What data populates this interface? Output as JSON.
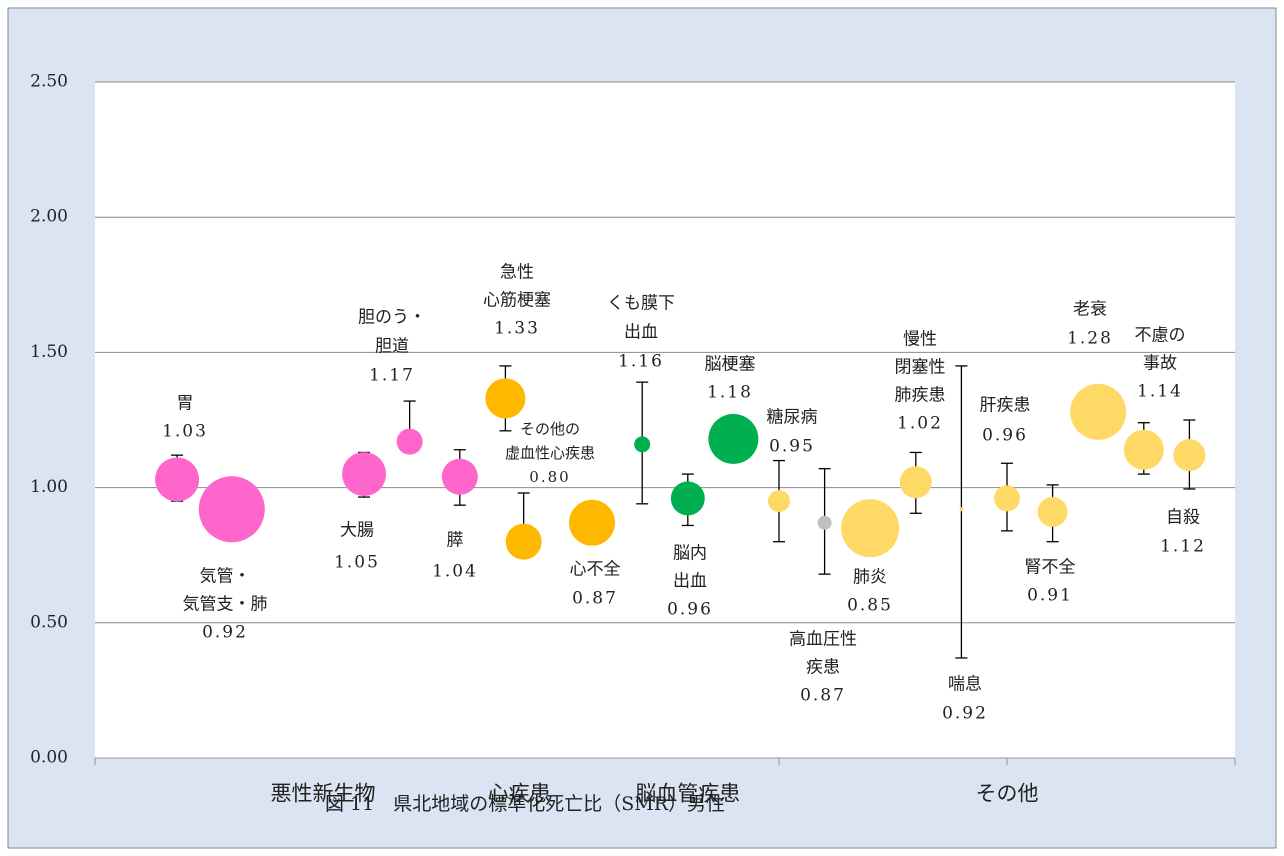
{
  "chart_data": {
    "type": "bubble",
    "title": "図 11　県北地域の標準化死亡比（SMR）男性",
    "xlim": [
      0,
      25
    ],
    "xticks": [
      0,
      15,
      20,
      25
    ],
    "ylim": [
      0,
      2.5
    ],
    "yticks": [
      {
        "value": 0,
        "label": "0.00"
      },
      {
        "value": 0.5,
        "label": "0.50"
      },
      {
        "value": 1,
        "label": "1.00"
      },
      {
        "value": 1.5,
        "label": "1.50"
      },
      {
        "value": 2,
        "label": "2.00"
      },
      {
        "value": 2.5,
        "label": "2.50"
      }
    ],
    "grid": true,
    "groups": [
      {
        "label": "悪性新生物",
        "x": 5
      },
      {
        "label": "心疾患",
        "x": 9.3
      },
      {
        "label": "脳血管疾患",
        "x": 13
      },
      {
        "label": "その他",
        "x": 20
      }
    ],
    "labels": [
      [
        "胃"
      ],
      [
        "気管・",
        "気管支・肺"
      ],
      [
        "大腸"
      ],
      [
        "胆のう・",
        "胆道"
      ],
      [
        "膵"
      ],
      [
        "急性",
        "心筋梗塞"
      ],
      [
        "その他の",
        "虚血性心疾患"
      ],
      [
        "心不全"
      ],
      [
        "くも膜下",
        "出血"
      ],
      [
        "脳内",
        "出血"
      ],
      [
        "脳梗塞"
      ],
      [
        "糖尿病"
      ],
      [
        "高血圧性",
        "疾患"
      ],
      [
        "肺炎"
      ],
      [
        "慢性",
        "閉塞性",
        "肺疾患"
      ],
      [
        "喘息"
      ],
      [
        "肝疾患"
      ],
      [
        "腎不全"
      ],
      [
        "老衰"
      ],
      [
        "不慮の",
        "事故"
      ],
      [
        "自殺"
      ]
    ],
    "x": [
      1.8,
      3,
      5.9,
      6.9,
      8,
      9,
      9.4,
      10.9,
      12,
      13,
      14,
      15,
      16,
      17,
      18,
      19,
      20,
      21,
      22,
      23,
      24
    ],
    "values": [
      1.03,
      0.92,
      1.05,
      1.17,
      1.04,
      1.33,
      0.8,
      0.87,
      1.16,
      0.96,
      1.18,
      0.95,
      0.87,
      0.85,
      1.02,
      0.92,
      0.96,
      0.91,
      1.28,
      1.14,
      1.12
    ],
    "value_labels": [
      "1.03",
      "0.92",
      "1.05",
      "1.17",
      "1.04",
      "1.33",
      "0.80",
      "0.87",
      "1.16",
      "0.96",
      "1.18",
      "0.95",
      "0.87",
      "0.85",
      "1.02",
      "0.92",
      "0.96",
      "0.91",
      "1.28",
      "1.14",
      "1.12"
    ],
    "sizes": [
      22,
      33,
      22,
      13,
      18,
      20,
      18,
      23,
      8,
      17,
      25,
      11,
      7,
      29,
      16,
      2,
      13,
      15,
      28,
      20,
      16
    ],
    "colors": [
      "#ff66cc",
      "#ff66cc",
      "#ff66cc",
      "#ff66cc",
      "#ff66cc",
      "#ffb800",
      "#ffb800",
      "#ffb800",
      "#00b050",
      "#00b050",
      "#00b050",
      "#ffd966",
      "#bfbfbf",
      "#ffd966",
      "#ffd966",
      "#ffd966",
      "#ffd966",
      "#ffd966",
      "#ffd966",
      "#ffd966",
      "#ffd966"
    ],
    "ci": [
      [
        0.95,
        1.12
      ],
      null,
      [
        0.965,
        1.13
      ],
      [
        1.13,
        1.32
      ],
      [
        0.935,
        1.14
      ],
      [
        1.21,
        1.45
      ],
      [
        0.815,
        0.98
      ],
      null,
      [
        0.94,
        1.39
      ],
      [
        0.86,
        1.05
      ],
      null,
      [
        0.8,
        1.1
      ],
      [
        0.68,
        1.07
      ],
      null,
      [
        0.905,
        1.13
      ],
      [
        0.37,
        1.45
      ],
      [
        0.84,
        1.09
      ],
      [
        0.8,
        1.01
      ],
      null,
      [
        1.05,
        1.24
      ],
      [
        0.995,
        1.25
      ]
    ]
  }
}
